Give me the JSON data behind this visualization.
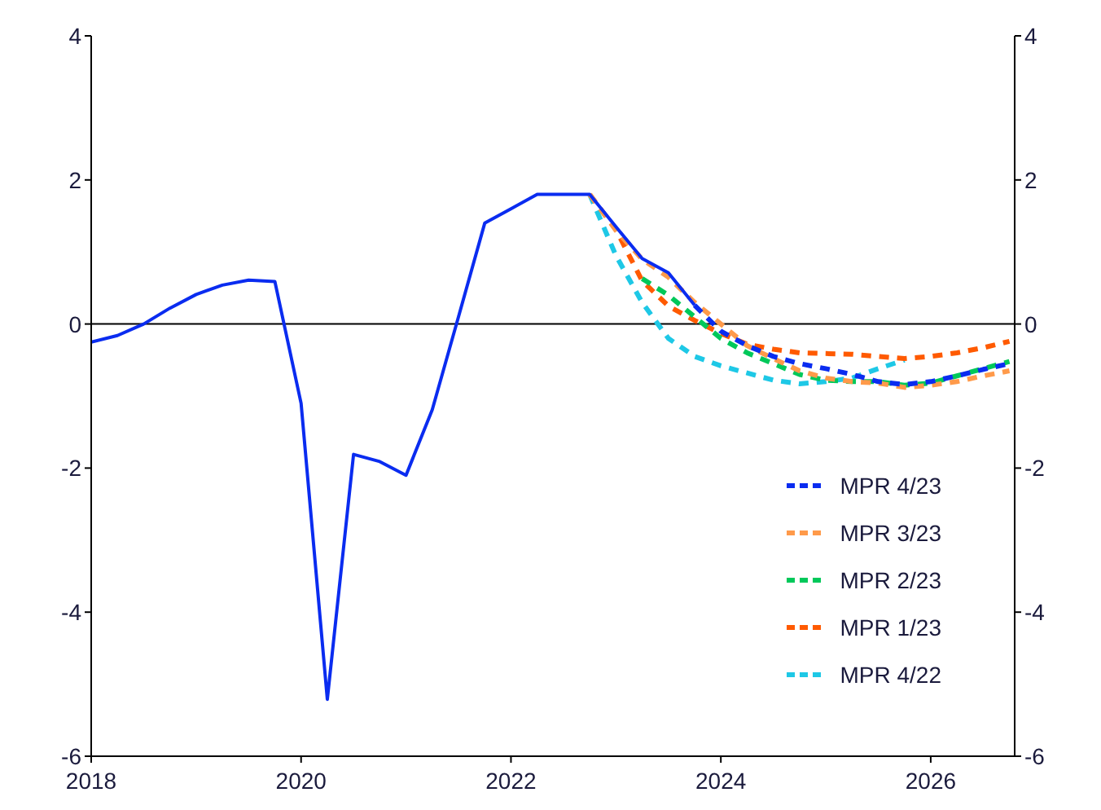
{
  "chart_data": {
    "type": "line",
    "xlim": [
      2018,
      2026.8
    ],
    "xticks": [
      2018,
      2020,
      2022,
      2024,
      2026
    ],
    "ylim": [
      -6,
      4
    ],
    "yticks": [
      -6,
      -4,
      -2,
      0,
      2,
      4
    ],
    "y2lim": [
      -6,
      4
    ],
    "y2ticks": [
      -6,
      -4,
      -2,
      0,
      2,
      4
    ],
    "legend": "bottom right",
    "marker": "none",
    "ref_lines": [
      {
        "axis": "y",
        "value": 0,
        "color": "#000000"
      }
    ],
    "series": [
      {
        "color": "#0a2cf0",
        "line_style": "solid",
        "x": [
          2018,
          2018.25,
          2018.5,
          2018.75,
          2019,
          2019.25,
          2019.5,
          2019.75,
          2020,
          2020.25,
          2020.5,
          2020.75,
          2021,
          2021.25,
          2021.5,
          2021.75,
          2022,
          2022.25,
          2022.5,
          2022.75,
          2023,
          2023.25,
          2023.5,
          2023.75
        ],
        "values": [
          -0.25,
          -0.16,
          0.0,
          0.22,
          0.41,
          0.54,
          0.61,
          0.59,
          -1.1,
          -5.21,
          -1.81,
          -1.91,
          -2.1,
          -1.19,
          0.1,
          1.4,
          1.6,
          1.8,
          1.8,
          1.8,
          1.35,
          0.91,
          0.71,
          0.26
        ]
      },
      {
        "name": "MPR 4/23",
        "color": "#0a2cf0",
        "line_style": "dashed",
        "x": [
          2023.75,
          2024,
          2024.25,
          2024.5,
          2024.75,
          2025,
          2025.25,
          2025.5,
          2025.75,
          2026,
          2026.25,
          2026.5,
          2026.75
        ],
        "values": [
          0.26,
          -0.1,
          -0.3,
          -0.45,
          -0.55,
          -0.62,
          -0.7,
          -0.8,
          -0.84,
          -0.8,
          -0.72,
          -0.63,
          -0.55
        ]
      },
      {
        "name": "MPR 3/23",
        "color": "#ff9a4a",
        "line_style": "dashed",
        "x": [
          2022.75,
          2023,
          2023.25,
          2023.5,
          2023.75,
          2024,
          2024.25,
          2024.5,
          2024.75,
          2025,
          2025.25,
          2025.5,
          2025.75,
          2026,
          2026.25,
          2026.5,
          2026.75
        ],
        "values": [
          1.8,
          1.3,
          0.9,
          0.65,
          0.3,
          0.0,
          -0.3,
          -0.48,
          -0.65,
          -0.75,
          -0.8,
          -0.82,
          -0.88,
          -0.85,
          -0.8,
          -0.72,
          -0.65
        ]
      },
      {
        "name": "MPR 2/23",
        "color": "#00c85a",
        "line_style": "dashed",
        "x": [
          2023.25,
          2023.5,
          2023.75,
          2024,
          2024.25,
          2024.5,
          2024.75,
          2025,
          2025.25,
          2025.5,
          2025.75,
          2026,
          2026.25,
          2026.5,
          2026.75
        ],
        "values": [
          0.63,
          0.4,
          0.1,
          -0.2,
          -0.4,
          -0.55,
          -0.7,
          -0.78,
          -0.8,
          -0.8,
          -0.85,
          -0.82,
          -0.72,
          -0.62,
          -0.52
        ]
      },
      {
        "name": "MPR 1/23",
        "color": "#ff5a00",
        "line_style": "dashed",
        "x": [
          2022.75,
          2023,
          2023.25,
          2023.5,
          2023.75,
          2024,
          2024.25,
          2024.5,
          2024.75,
          2025,
          2025.25,
          2025.5,
          2025.75,
          2026,
          2026.25,
          2026.5,
          2026.75
        ],
        "values": [
          1.8,
          1.31,
          0.6,
          0.25,
          0.05,
          -0.13,
          -0.28,
          -0.35,
          -0.4,
          -0.41,
          -0.42,
          -0.45,
          -0.48,
          -0.45,
          -0.4,
          -0.33,
          -0.24
        ]
      },
      {
        "name": "MPR 4/22",
        "color": "#1ec8e6",
        "line_style": "dashed",
        "x": [
          2022.75,
          2023,
          2023.25,
          2023.5,
          2023.75,
          2024,
          2024.25,
          2024.5,
          2024.75,
          2025,
          2025.25,
          2025.5,
          2025.75
        ],
        "values": [
          1.8,
          0.95,
          0.3,
          -0.2,
          -0.45,
          -0.58,
          -0.68,
          -0.78,
          -0.83,
          -0.8,
          -0.75,
          -0.62,
          -0.5
        ]
      }
    ]
  }
}
